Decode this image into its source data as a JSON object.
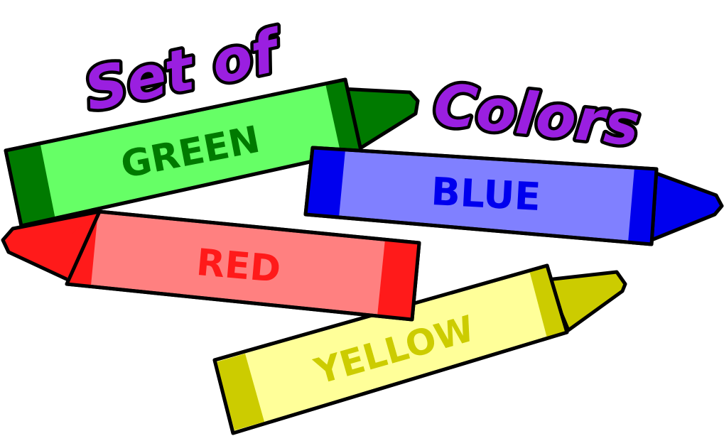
{
  "title": {
    "line1": "Set of",
    "line2": "Colors",
    "color": "#9a1fe0"
  },
  "crayons": [
    {
      "key": "green",
      "label": "GREEN",
      "body": "#66ff66",
      "band": "#007a00",
      "tip": "#007a00",
      "text": "#007a00"
    },
    {
      "key": "blue",
      "label": "BLUE",
      "body": "#8080ff",
      "band": "#0000ee",
      "tip": "#0000ee",
      "text": "#0000ee"
    },
    {
      "key": "red",
      "label": "RED",
      "body": "#ff8080",
      "band": "#ff1a1a",
      "tip": "#ff1a1a",
      "text": "#ff1a1a"
    },
    {
      "key": "yellow",
      "label": "YELLOW",
      "body": "#ffff99",
      "band": "#cccc00",
      "tip": "#cccc00",
      "text": "#cccc00"
    }
  ]
}
